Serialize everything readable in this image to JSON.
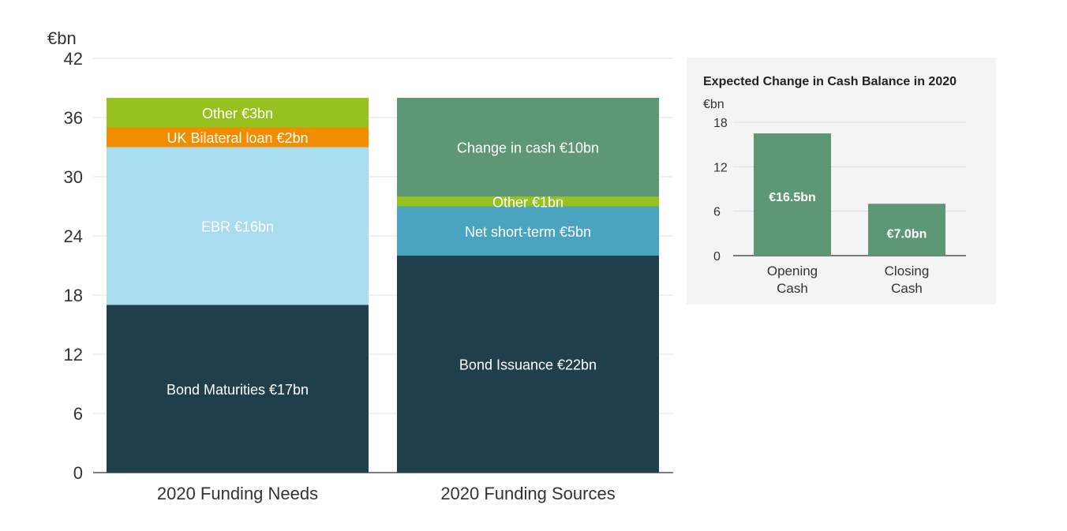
{
  "chart_data": [
    {
      "type": "bar",
      "stacked": true,
      "title": "",
      "ylabel": "€bn",
      "ylim": [
        0,
        42
      ],
      "yticks": [
        0,
        6,
        12,
        18,
        24,
        30,
        36,
        42
      ],
      "grid": true,
      "categories": [
        "2020 Funding Needs",
        "2020 Funding Sources"
      ],
      "stacks": [
        [
          {
            "label": "Bond Maturities €17bn",
            "value": 17,
            "color": "#1f3f4c"
          },
          {
            "label": "EBR €16bn",
            "value": 16,
            "color": "#a8dcee"
          },
          {
            "label": "UK Bilateral loan €2bn",
            "value": 2,
            "color": "#f28c00"
          },
          {
            "label": "Other €3bn",
            "value": 3,
            "color": "#97c11f"
          }
        ],
        [
          {
            "label": "Bond Issuance €22bn",
            "value": 22,
            "color": "#1f3f4c"
          },
          {
            "label": "Net short-term €5bn",
            "value": 5,
            "color": "#4aa3bf"
          },
          {
            "label": "Other €1bn",
            "value": 1,
            "color": "#97c11f"
          },
          {
            "label": "Change in cash €10bn",
            "value": 10,
            "color": "#5e9775"
          }
        ]
      ]
    },
    {
      "type": "bar",
      "title": "Expected Change in Cash Balance in 2020",
      "ylabel": "€bn",
      "ylim": [
        0,
        18
      ],
      "yticks": [
        0,
        6,
        12,
        18
      ],
      "grid": true,
      "categories": [
        [
          "Opening",
          "Cash"
        ],
        [
          "Closing",
          "Cash"
        ]
      ],
      "values": [
        16.5,
        7.0
      ],
      "value_labels": [
        "€16.5bn",
        "€7.0bn"
      ],
      "color": "#5e9775",
      "background": "#f4f4f4"
    }
  ]
}
